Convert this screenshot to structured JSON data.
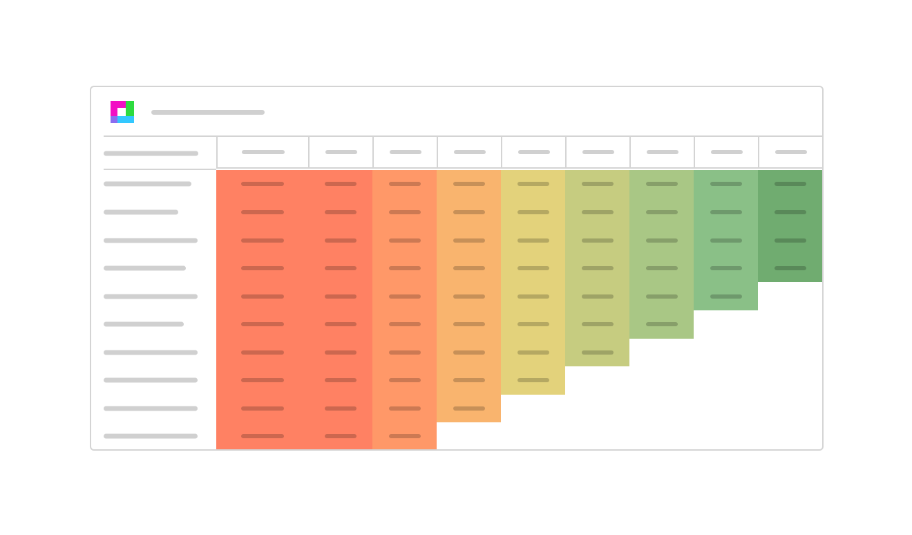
{
  "app": {
    "logo_icon": "cohort-app-logo-icon",
    "logo_colors": [
      "#f20fc4",
      "#2ddb3f",
      "#33c8ff",
      "#8a6cf0"
    ]
  },
  "table": {
    "row_count": 10,
    "column_count": 9,
    "column_colors": [
      "#ff8163",
      "#ff8163",
      "#ff9868",
      "#f9b46e",
      "#e3d27b",
      "#c6cc80",
      "#a9c785",
      "#8ac087",
      "#70ac70"
    ],
    "cells_per_column": [
      10,
      10,
      10,
      9,
      8,
      7,
      6,
      5,
      4
    ]
  }
}
